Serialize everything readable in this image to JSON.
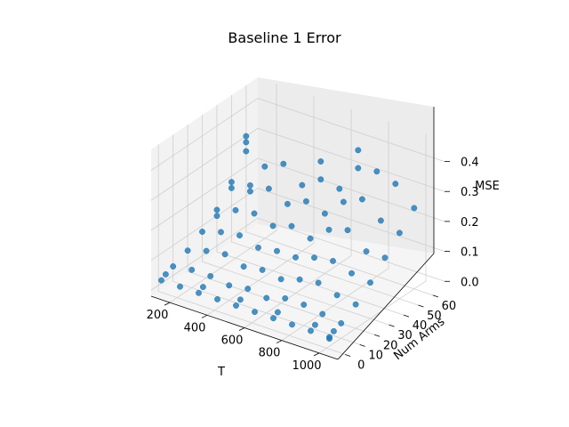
{
  "chart_data": {
    "type": "scatter",
    "projection": "3d",
    "title": "Baseline 1 Error",
    "xlabel": "T",
    "ylabel": "Num Arms",
    "zlabel": "MSE",
    "x_ticks": [
      "200",
      "400",
      "600",
      "800",
      "1000"
    ],
    "y_ticks": [
      "0",
      "10",
      "20",
      "30",
      "40",
      "50",
      "60"
    ],
    "z_ticks": [
      "0.0",
      "0.1",
      "0.2",
      "0.3",
      "0.4"
    ],
    "xlim": [
      100,
      1100
    ],
    "ylim": [
      -5,
      68
    ],
    "zlim": [
      -0.02,
      0.47
    ],
    "grid": true,
    "marker_color": "#1f77b4",
    "points_note": "approximate grid of points; MSE values estimated",
    "T_values": [
      100,
      200,
      300,
      400,
      500,
      600,
      700,
      800,
      900,
      1000
    ],
    "arm_values": [
      2,
      5,
      10,
      20,
      30,
      40,
      50,
      60
    ],
    "series": [
      {
        "points": [
          [
            100,
            60,
            0.3
          ],
          [
            100,
            60,
            0.28
          ],
          [
            100,
            60,
            0.25
          ],
          [
            100,
            50,
            0.18
          ],
          [
            100,
            50,
            0.16
          ],
          [
            100,
            40,
            0.12
          ],
          [
            100,
            40,
            0.1
          ],
          [
            100,
            30,
            0.08
          ],
          [
            100,
            20,
            0.05
          ],
          [
            100,
            10,
            0.03
          ],
          [
            100,
            5,
            0.02
          ],
          [
            100,
            2,
            0.01
          ],
          [
            200,
            60,
            0.22
          ],
          [
            200,
            50,
            0.19
          ],
          [
            200,
            50,
            0.17
          ],
          [
            200,
            40,
            0.14
          ],
          [
            200,
            30,
            0.1
          ],
          [
            200,
            20,
            0.07
          ],
          [
            200,
            10,
            0.04
          ],
          [
            200,
            2,
            0.01
          ],
          [
            300,
            60,
            0.25
          ],
          [
            300,
            50,
            0.2
          ],
          [
            300,
            40,
            0.15
          ],
          [
            300,
            30,
            0.11
          ],
          [
            300,
            20,
            0.08
          ],
          [
            300,
            10,
            0.04
          ],
          [
            300,
            5,
            0.02
          ],
          [
            300,
            2,
            0.01
          ],
          [
            400,
            60,
            0.2
          ],
          [
            400,
            50,
            0.17
          ],
          [
            400,
            40,
            0.13
          ],
          [
            400,
            30,
            0.09
          ],
          [
            400,
            20,
            0.06
          ],
          [
            400,
            10,
            0.03
          ],
          [
            400,
            2,
            0.01
          ],
          [
            500,
            60,
            0.3
          ],
          [
            500,
            60,
            0.24
          ],
          [
            500,
            50,
            0.2
          ],
          [
            500,
            40,
            0.15
          ],
          [
            500,
            30,
            0.1
          ],
          [
            500,
            20,
            0.07
          ],
          [
            500,
            10,
            0.04
          ],
          [
            500,
            5,
            0.02
          ],
          [
            500,
            2,
            0.01
          ],
          [
            600,
            60,
            0.23
          ],
          [
            600,
            50,
            0.18
          ],
          [
            600,
            40,
            0.13
          ],
          [
            600,
            30,
            0.1
          ],
          [
            600,
            20,
            0.06
          ],
          [
            600,
            10,
            0.03
          ],
          [
            600,
            2,
            0.01
          ],
          [
            700,
            60,
            0.38
          ],
          [
            700,
            60,
            0.32
          ],
          [
            700,
            50,
            0.24
          ],
          [
            700,
            40,
            0.18
          ],
          [
            700,
            30,
            0.12
          ],
          [
            700,
            20,
            0.08
          ],
          [
            700,
            10,
            0.05
          ],
          [
            700,
            5,
            0.02
          ],
          [
            700,
            2,
            0.01
          ],
          [
            800,
            60,
            0.33
          ],
          [
            800,
            50,
            0.27
          ],
          [
            800,
            40,
            0.2
          ],
          [
            800,
            30,
            0.13
          ],
          [
            800,
            20,
            0.09
          ],
          [
            800,
            10,
            0.05
          ],
          [
            800,
            2,
            0.01
          ],
          [
            900,
            60,
            0.31
          ],
          [
            900,
            50,
            0.22
          ],
          [
            900,
            40,
            0.15
          ],
          [
            900,
            30,
            0.11
          ],
          [
            900,
            20,
            0.07
          ],
          [
            900,
            10,
            0.04
          ],
          [
            900,
            5,
            0.02
          ],
          [
            900,
            2,
            0.01
          ],
          [
            1000,
            60,
            0.25
          ],
          [
            1000,
            50,
            0.2
          ],
          [
            1000,
            40,
            0.15
          ],
          [
            1000,
            30,
            0.1
          ],
          [
            1000,
            20,
            0.06
          ],
          [
            1000,
            10,
            0.03
          ],
          [
            1000,
            5,
            0.02
          ],
          [
            1000,
            2,
            0.01
          ],
          [
            1000,
            2,
            0.005
          ]
        ]
      }
    ]
  }
}
